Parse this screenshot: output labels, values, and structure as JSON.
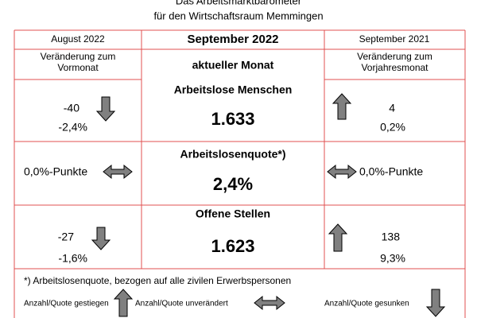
{
  "header": {
    "title": "Das Arbeitsmarktbarometer",
    "subtitle": "für den Wirtschaftsraum Memmingen"
  },
  "table": {
    "columns": [
      "August 2022",
      "September 2022",
      "September 2021"
    ],
    "subheaders": [
      "Veränderung zum Vormonat",
      "aktueller Monat",
      "Veränderung zum Vorjahresmonat"
    ],
    "rows": [
      {
        "label": "Arbeitslose Menschen",
        "value": "1.633",
        "previous_month": [
          "-40",
          "-2,4%"
        ],
        "previous_year": [
          "4",
          "0,2%"
        ]
      },
      {
        "label": "Arbeitslosenquote*)",
        "value": "2,4%",
        "previous_month": [
          "0,0%-Punkte"
        ],
        "previous_year": [
          "0,0%-Punkte"
        ]
      },
      {
        "label": "Offene Stellen",
        "value": "1.623",
        "previous_month": [
          "-27",
          "-1,6%"
        ],
        "previous_year": [
          "138",
          "9,3%"
        ]
      }
    ]
  },
  "footnote": "*) Arbeitslosenquote, bezogen auf alle zivilen Erwerbspersonen",
  "legend": [
    "Anzahl/Quote gestiegen",
    "Anzahl/Quote unverändert",
    "Anzahl/Quote gesunken"
  ]
}
